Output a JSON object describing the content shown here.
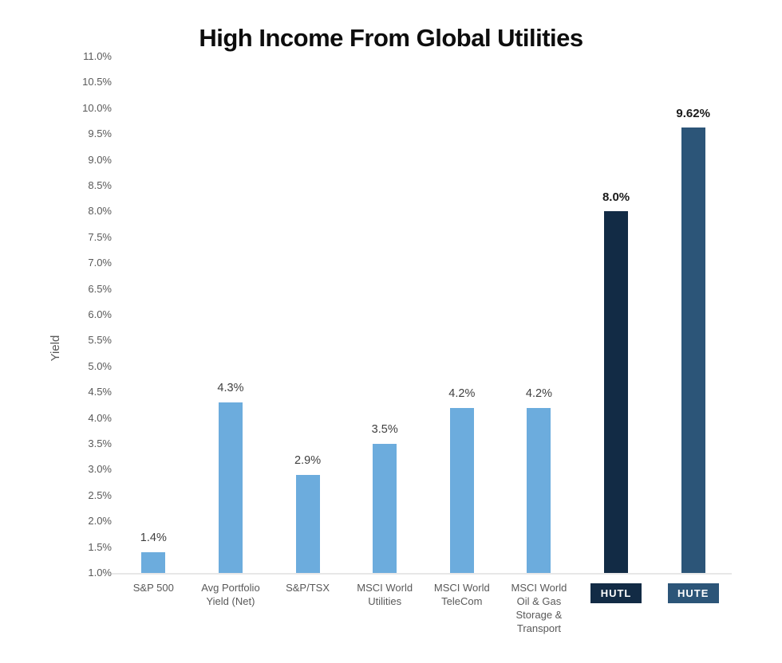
{
  "page": {
    "background": "#ffffff"
  },
  "chart_data": {
    "type": "bar",
    "title": "High Income From Global Utilities",
    "xlabel": "",
    "ylabel": "Yield",
    "ylim": [
      1.0,
      11.0
    ],
    "ytick_step": 0.5,
    "ytick_labels": [
      "11.0%",
      "10.5%",
      "10.0%",
      "9.5%",
      "9.0%",
      "8.5%",
      "8.0%",
      "7.5%",
      "7.0%",
      "6.5%",
      "6.0%",
      "5.5%",
      "5.0%",
      "4.5%",
      "4.0%",
      "3.5%",
      "3.0%",
      "2.5%",
      "2.0%",
      "1.5%",
      "1.0%"
    ],
    "grid": false,
    "legend": null,
    "categories": [
      "S&P 500",
      "Avg Portfolio Yield (Net)",
      "S&P/TSX",
      "MSCI World Utilities",
      "MSCI World TeleCom",
      "MSCI World Oil & Gas Storage & Transport",
      "HUTL",
      "HUTE"
    ],
    "category_lines": [
      [
        "S&P 500"
      ],
      [
        "Avg Portfolio",
        "Yield (Net)"
      ],
      [
        "S&P/TSX"
      ],
      [
        "MSCI World",
        "Utilities"
      ],
      [
        "MSCI World",
        "TeleCom"
      ],
      [
        "MSCI World",
        "Oil & Gas",
        "Storage &",
        "Transport"
      ],
      [
        "HUTL"
      ],
      [
        "HUTE"
      ]
    ],
    "values": [
      1.4,
      4.3,
      2.9,
      3.5,
      4.2,
      4.2,
      8.0,
      9.62
    ],
    "value_labels": [
      "1.4%",
      "4.3%",
      "2.9%",
      "3.5%",
      "4.2%",
      "4.2%",
      "8.0%",
      "9.62%"
    ],
    "emphasized": [
      false,
      false,
      false,
      false,
      false,
      false,
      true,
      true
    ],
    "bar_colors": [
      "#6cacdd",
      "#6cacdd",
      "#6cacdd",
      "#6cacdd",
      "#6cacdd",
      "#6cacdd",
      "#122b45",
      "#2c5578"
    ],
    "category_box_colors": [
      null,
      null,
      null,
      null,
      null,
      null,
      "#122b45",
      "#2c5578"
    ]
  },
  "colors": {
    "light_blue_bar": "#6cacdd",
    "hutl_navy": "#122b45",
    "hute_steel": "#2c5578",
    "axis_text": "#595959",
    "value_text": "#3f3f3f",
    "emphasized_value_text": "#1a1a1a",
    "title_text": "#0d0d0d",
    "axis_line": "#e7e7e7",
    "box_text": "#ffffff"
  }
}
